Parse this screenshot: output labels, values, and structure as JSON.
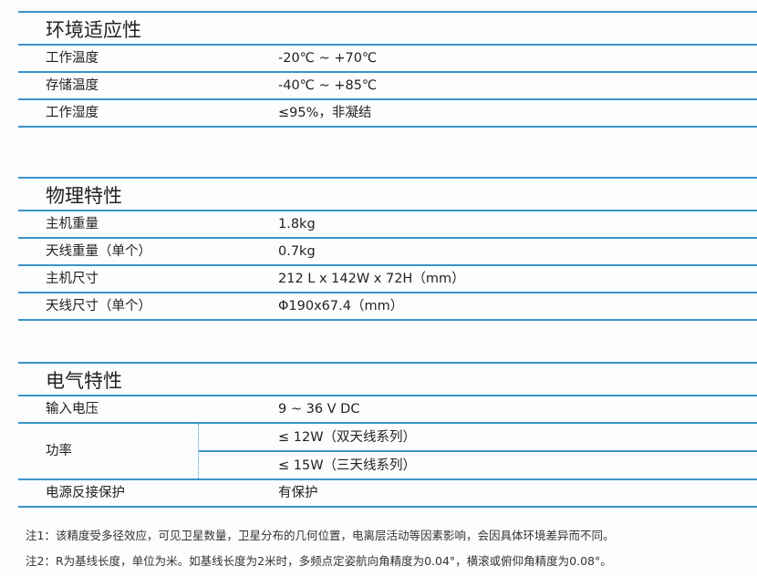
{
  "sections": [
    {
      "title": "环境适应性",
      "rows": [
        {
          "label": "工作温度",
          "value": "-20℃ ~ +70℃"
        },
        {
          "label": "存储温度",
          "value": "-40℃ ~ +85℃"
        },
        {
          "label": "工作湿度",
          "value": "≤95%，非凝结"
        }
      ]
    },
    {
      "title": "物理特性",
      "rows": [
        {
          "label": "主机重量",
          "value": "1.8kg"
        },
        {
          "label": "天线重量（单个）",
          "value": "0.7kg"
        },
        {
          "label": "主机尺寸",
          "value": "212 L x 142W x 72H（mm）"
        },
        {
          "label": "天线尺寸（单个）",
          "value": "Φ190x67.4（mm）"
        }
      ]
    },
    {
      "title": "电气特性",
      "rows": [
        {
          "label": "输入电压",
          "value": "9 ~ 36 V DC"
        },
        {
          "label": "功率",
          "values": [
            "≤ 12W（双天线系列）",
            "≤ 15W（三天线系列）"
          ]
        },
        {
          "label": "电源反接保护",
          "value": "有保护"
        }
      ]
    }
  ],
  "notes": [
    "注1：该精度受多径效应，可见卫星数量，卫星分布的几何位置，电离层活动等因素影响，会因具体环境差异而不同。",
    "注2：R为基线长度，单位为米。如基线长度为2米时，多频点定姿航向角精度为0.04°，横滚或俯仰角精度为0.08°。"
  ]
}
